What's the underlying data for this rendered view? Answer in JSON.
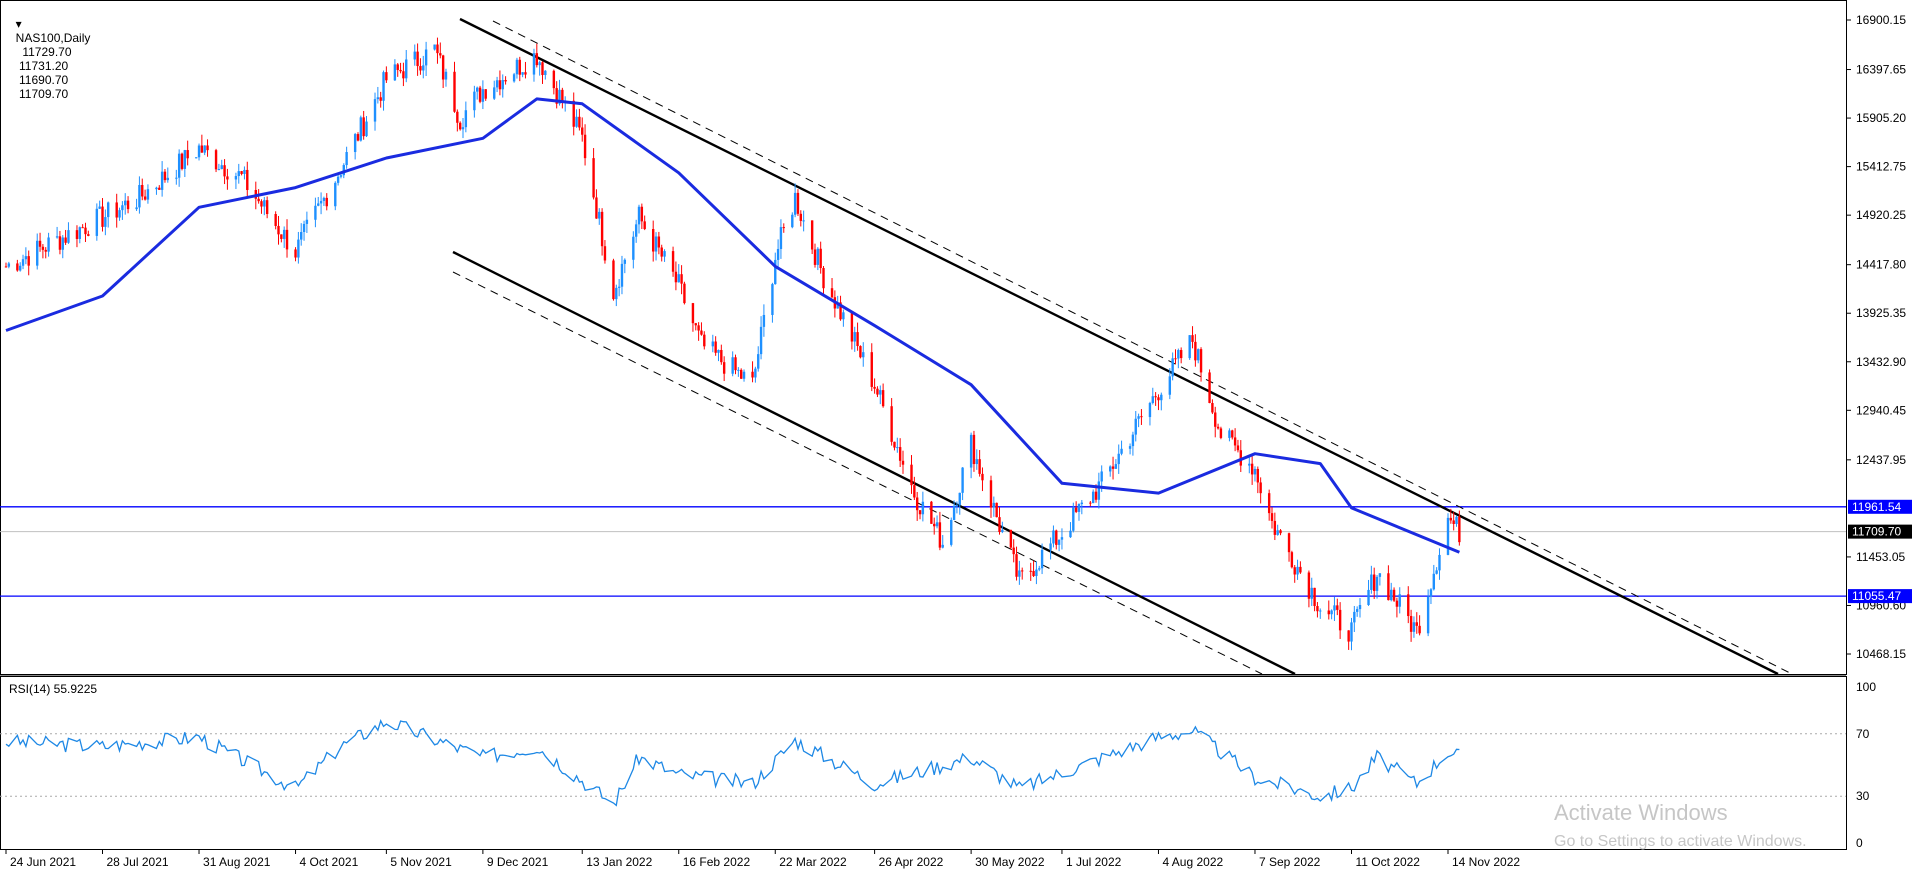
{
  "header": {
    "symbol": "NAS100,Daily",
    "open": "11729.70",
    "high": "11731.20",
    "low": "11690.70",
    "close": "11709.70"
  },
  "rsi_label": "RSI(14) 55.9225",
  "watermark": {
    "line1": "Activate Windows",
    "line2": "Go to Settings to activate Windows."
  },
  "colors": {
    "bull": "#1e90ff",
    "bear": "#ff0000",
    "ma": "#1a2be0",
    "hline": "#0000ff",
    "channel": "#000000",
    "rsi": "#1e88e5",
    "price_tag_bg": "#0000ff",
    "close_tag_bg": "#000000"
  },
  "chart_data": [
    {
      "type": "candlestick",
      "symbol": "NAS100",
      "timeframe": "Daily",
      "x_labels": [
        "24 Jun 2021",
        "28 Jul 2021",
        "31 Aug 2021",
        "4 Oct 2021",
        "5 Nov 2021",
        "9 Dec 2021",
        "13 Jan 2022",
        "16 Feb 2022",
        "22 Mar 2022",
        "26 Apr 2022",
        "30 May 2022",
        "1 Jul 2022",
        "4 Aug 2022",
        "7 Sep 2022",
        "11 Oct 2022",
        "14 Nov 2022"
      ],
      "y_ticks": [
        "16900.15",
        "16397.65",
        "15905.20",
        "15412.75",
        "14920.25",
        "14417.80",
        "13925.35",
        "13432.90",
        "12940.45",
        "12437.95",
        "11453.05",
        "10960.60",
        "10468.15"
      ],
      "y_tick_values": [
        16900.15,
        16397.65,
        15905.2,
        15412.75,
        14920.25,
        14417.8,
        13925.35,
        13432.9,
        12940.45,
        12437.95,
        11453.05,
        10960.6,
        10468.15
      ],
      "close_path": [
        {
          "date": "24 Jun 2021",
          "close": 14400
        },
        {
          "date": "28 Jul 2021",
          "close": 14900
        },
        {
          "date": "10 Aug 2021",
          "close": 15100
        },
        {
          "date": "31 Aug 2021",
          "close": 15600
        },
        {
          "date": "15 Sep 2021",
          "close": 15300
        },
        {
          "date": "4 Oct 2021",
          "close": 14550
        },
        {
          "date": "20 Oct 2021",
          "close": 15400
        },
        {
          "date": "5 Nov 2021",
          "close": 16300
        },
        {
          "date": "22 Nov 2021",
          "close": 16600
        },
        {
          "date": "1 Dec 2021",
          "close": 15900
        },
        {
          "date": "9 Dec 2021",
          "close": 16200
        },
        {
          "date": "28 Dec 2021",
          "close": 16550
        },
        {
          "date": "13 Jan 2022",
          "close": 15700
        },
        {
          "date": "24 Jan 2022",
          "close": 14150
        },
        {
          "date": "2 Feb 2022",
          "close": 14900
        },
        {
          "date": "16 Feb 2022",
          "close": 14200
        },
        {
          "date": "24 Feb 2022",
          "close": 13600
        },
        {
          "date": "14 Mar 2022",
          "close": 13200
        },
        {
          "date": "22 Mar 2022",
          "close": 14500
        },
        {
          "date": "29 Mar 2022",
          "close": 15100
        },
        {
          "date": "8 Apr 2022",
          "close": 14300
        },
        {
          "date": "26 Apr 2022",
          "close": 13200
        },
        {
          "date": "10 May 2022",
          "close": 12100
        },
        {
          "date": "20 May 2022",
          "close": 11600
        },
        {
          "date": "30 May 2022",
          "close": 12600
        },
        {
          "date": "16 Jun 2022",
          "close": 11200
        },
        {
          "date": "1 Jul 2022",
          "close": 11700
        },
        {
          "date": "15 Jul 2022",
          "close": 12200
        },
        {
          "date": "4 Aug 2022",
          "close": 13150
        },
        {
          "date": "16 Aug 2022",
          "close": 13650
        },
        {
          "date": "26 Aug 2022",
          "close": 12700
        },
        {
          "date": "7 Sep 2022",
          "close": 12350
        },
        {
          "date": "13 Sep 2022",
          "close": 11800
        },
        {
          "date": "30 Sep 2022",
          "close": 10960
        },
        {
          "date": "11 Oct 2022",
          "close": 10700
        },
        {
          "date": "20 Oct 2022",
          "close": 11300
        },
        {
          "date": "3 Nov 2022",
          "close": 10700
        },
        {
          "date": "14 Nov 2022",
          "close": 11850
        },
        {
          "date": "18 Nov 2022",
          "close": 11709.7
        }
      ],
      "moving_average_path": [
        {
          "date": "24 Jun 2021",
          "value": 13750
        },
        {
          "date": "28 Jul 2021",
          "value": 14100
        },
        {
          "date": "31 Aug 2021",
          "value": 15000
        },
        {
          "date": "4 Oct 2021",
          "value": 15200
        },
        {
          "date": "5 Nov 2021",
          "value": 15500
        },
        {
          "date": "9 Dec 2021",
          "value": 15700
        },
        {
          "date": "28 Dec 2021",
          "value": 16100
        },
        {
          "date": "13 Jan 2022",
          "value": 16050
        },
        {
          "date": "16 Feb 2022",
          "value": 15350
        },
        {
          "date": "22 Mar 2022",
          "value": 14400
        },
        {
          "date": "26 Apr 2022",
          "value": 13800
        },
        {
          "date": "30 May 2022",
          "value": 13200
        },
        {
          "date": "1 Jul 2022",
          "value": 12200
        },
        {
          "date": "4 Aug 2022",
          "value": 12100
        },
        {
          "date": "7 Sep 2022",
          "value": 12500
        },
        {
          "date": "30 Sep 2022",
          "value": 12400
        },
        {
          "date": "11 Oct 2022",
          "value": 11950
        },
        {
          "date": "18 Nov 2022",
          "value": 11500
        }
      ],
      "horizontal_lines": [
        {
          "label": "11961.54",
          "value": 11961.54
        },
        {
          "label": "11055.47",
          "value": 11055.47
        }
      ],
      "close_label": "11709.70",
      "channel": "descending parallel channel with dashed outer lines"
    },
    {
      "type": "line",
      "name": "RSI(14)",
      "value": 55.9225,
      "y_ticks": [
        "100",
        "70",
        "30",
        "0"
      ],
      "levels": [
        70,
        30
      ],
      "ylim": [
        0,
        100
      ],
      "path": [
        {
          "date": "24 Jun 2021",
          "rsi": 65
        },
        {
          "date": "28 Jul 2021",
          "rsi": 62
        },
        {
          "date": "31 Aug 2021",
          "rsi": 68
        },
        {
          "date": "4 Oct 2021",
          "rsi": 35
        },
        {
          "date": "20 Oct 2021",
          "rsi": 62
        },
        {
          "date": "5 Nov 2021",
          "rsi": 78
        },
        {
          "date": "9 Dec 2021",
          "rsi": 55
        },
        {
          "date": "28 Dec 2021",
          "rsi": 62
        },
        {
          "date": "24 Jan 2022",
          "rsi": 25
        },
        {
          "date": "2 Feb 2022",
          "rsi": 55
        },
        {
          "date": "16 Feb 2022",
          "rsi": 44
        },
        {
          "date": "14 Mar 2022",
          "rsi": 38
        },
        {
          "date": "29 Mar 2022",
          "rsi": 66
        },
        {
          "date": "26 Apr 2022",
          "rsi": 38
        },
        {
          "date": "30 May 2022",
          "rsi": 55
        },
        {
          "date": "16 Jun 2022",
          "rsi": 35
        },
        {
          "date": "4 Aug 2022",
          "rsi": 68
        },
        {
          "date": "16 Aug 2022",
          "rsi": 72
        },
        {
          "date": "7 Sep 2022",
          "rsi": 42
        },
        {
          "date": "30 Sep 2022",
          "rsi": 30
        },
        {
          "date": "11 Oct 2022",
          "rsi": 35
        },
        {
          "date": "20 Oct 2022",
          "rsi": 55
        },
        {
          "date": "3 Nov 2022",
          "rsi": 38
        },
        {
          "date": "14 Nov 2022",
          "rsi": 59
        },
        {
          "date": "18 Nov 2022",
          "rsi": 55.9225
        }
      ]
    }
  ]
}
